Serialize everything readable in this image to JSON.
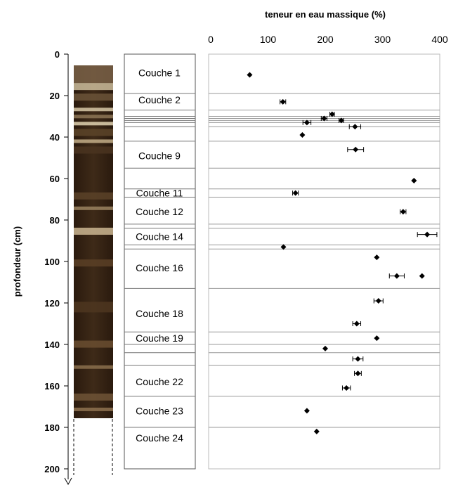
{
  "chart_data": {
    "type": "scatter",
    "x_title": "teneur en eau massique (%)",
    "y_title": "profondeur (cm)",
    "x_ticks": [
      "0",
      "100",
      "200",
      "300",
      "400"
    ],
    "y_ticks": [
      "0",
      "20",
      "40",
      "60",
      "80",
      "100",
      "120",
      "140",
      "160",
      "180",
      "200"
    ],
    "xlim": [
      0,
      400
    ],
    "ylim": [
      0,
      200
    ],
    "y_inverted": true,
    "layer_boundaries": [
      19,
      27,
      30,
      31,
      32,
      33,
      35,
      42,
      55,
      65,
      69,
      82,
      84,
      92,
      94,
      113,
      134,
      140,
      144,
      150,
      165,
      180
    ],
    "layer_labels": [
      {
        "label": "Couche 1",
        "depth": 9
      },
      {
        "label": "Couche 2",
        "depth": 22
      },
      {
        "label": "Couche 9",
        "depth": 49
      },
      {
        "label": "Couche 11",
        "depth": 67
      },
      {
        "label": "Couche 12",
        "depth": 76
      },
      {
        "label": "Couche 14",
        "depth": 88
      },
      {
        "label": "Couche 16",
        "depth": 103
      },
      {
        "label": "Couche 18",
        "depth": 125
      },
      {
        "label": "Couche 19",
        "depth": 137
      },
      {
        "label": "Couche 22",
        "depth": 158
      },
      {
        "label": "Couche 23",
        "depth": 172
      },
      {
        "label": "Couche 24",
        "depth": 185
      }
    ],
    "points": [
      {
        "x": 68,
        "y": 10,
        "err": 0
      },
      {
        "x": 126,
        "y": 23,
        "err": 5
      },
      {
        "x": 212,
        "y": 29,
        "err": 4
      },
      {
        "x": 198,
        "y": 31,
        "err": 5
      },
      {
        "x": 228,
        "y": 32,
        "err": 4
      },
      {
        "x": 168,
        "y": 33,
        "err": 7
      },
      {
        "x": 252,
        "y": 35,
        "err": 10
      },
      {
        "x": 160,
        "y": 39,
        "err": 0
      },
      {
        "x": 253,
        "y": 46,
        "err": 14
      },
      {
        "x": 355,
        "y": 61,
        "err": 0
      },
      {
        "x": 148,
        "y": 67,
        "err": 5
      },
      {
        "x": 336,
        "y": 76,
        "err": 5
      },
      {
        "x": 378,
        "y": 87,
        "err": 17
      },
      {
        "x": 127,
        "y": 93,
        "err": 0
      },
      {
        "x": 290,
        "y": 98,
        "err": 0
      },
      {
        "x": 325,
        "y": 107,
        "err": 13
      },
      {
        "x": 369,
        "y": 107,
        "err": 0
      },
      {
        "x": 293,
        "y": 119,
        "err": 8
      },
      {
        "x": 255,
        "y": 130,
        "err": 7
      },
      {
        "x": 290,
        "y": 137,
        "err": 0
      },
      {
        "x": 200,
        "y": 142,
        "err": 0
      },
      {
        "x": 257,
        "y": 147,
        "err": 9
      },
      {
        "x": 257,
        "y": 154,
        "err": 6
      },
      {
        "x": 237,
        "y": 161,
        "err": 7
      },
      {
        "x": 168,
        "y": 172,
        "err": 0
      },
      {
        "x": 185,
        "y": 182,
        "err": 0
      }
    ]
  },
  "colors": {
    "core_top": "#4a3320",
    "core_dark": "#2c1b10",
    "core_mid": "#3b2716",
    "core_light": "#a88d6a",
    "gridline": "#9a9a9a"
  }
}
